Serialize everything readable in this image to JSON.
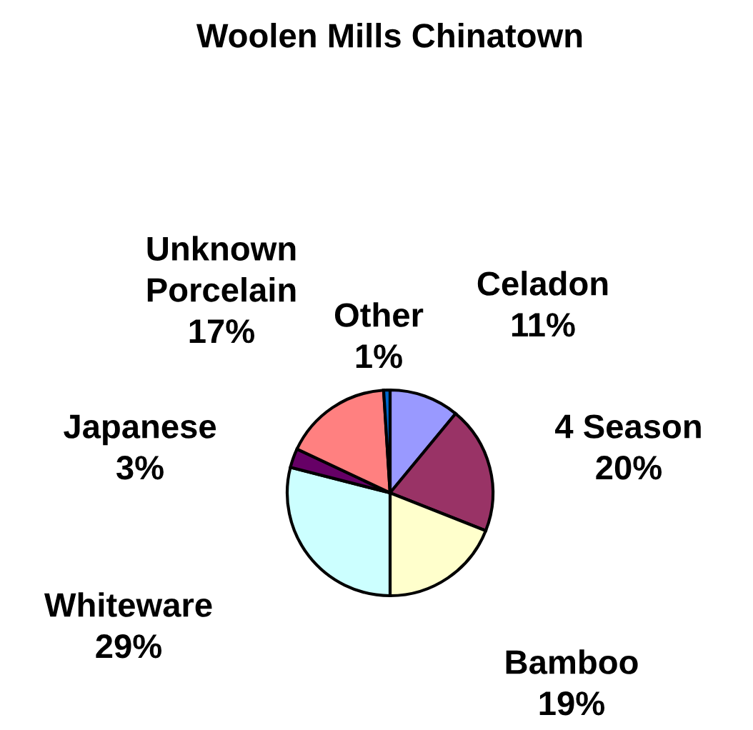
{
  "chart_data": {
    "type": "pie",
    "title": "Woolen Mills Chinatown",
    "categories": [
      "Celadon",
      "4 Season",
      "Bamboo",
      "Whiteware",
      "Japanese",
      "Unknown Porcelain",
      "Other"
    ],
    "values": [
      11,
      20,
      19,
      29,
      3,
      17,
      1
    ],
    "colors": [
      "#9999ff",
      "#993366",
      "#ffffcc",
      "#ccffff",
      "#660066",
      "#ff8080",
      "#0066cc"
    ],
    "value_labels": [
      "11%",
      "20%",
      "19%",
      "29%",
      "3%",
      "17%",
      "1%"
    ]
  }
}
